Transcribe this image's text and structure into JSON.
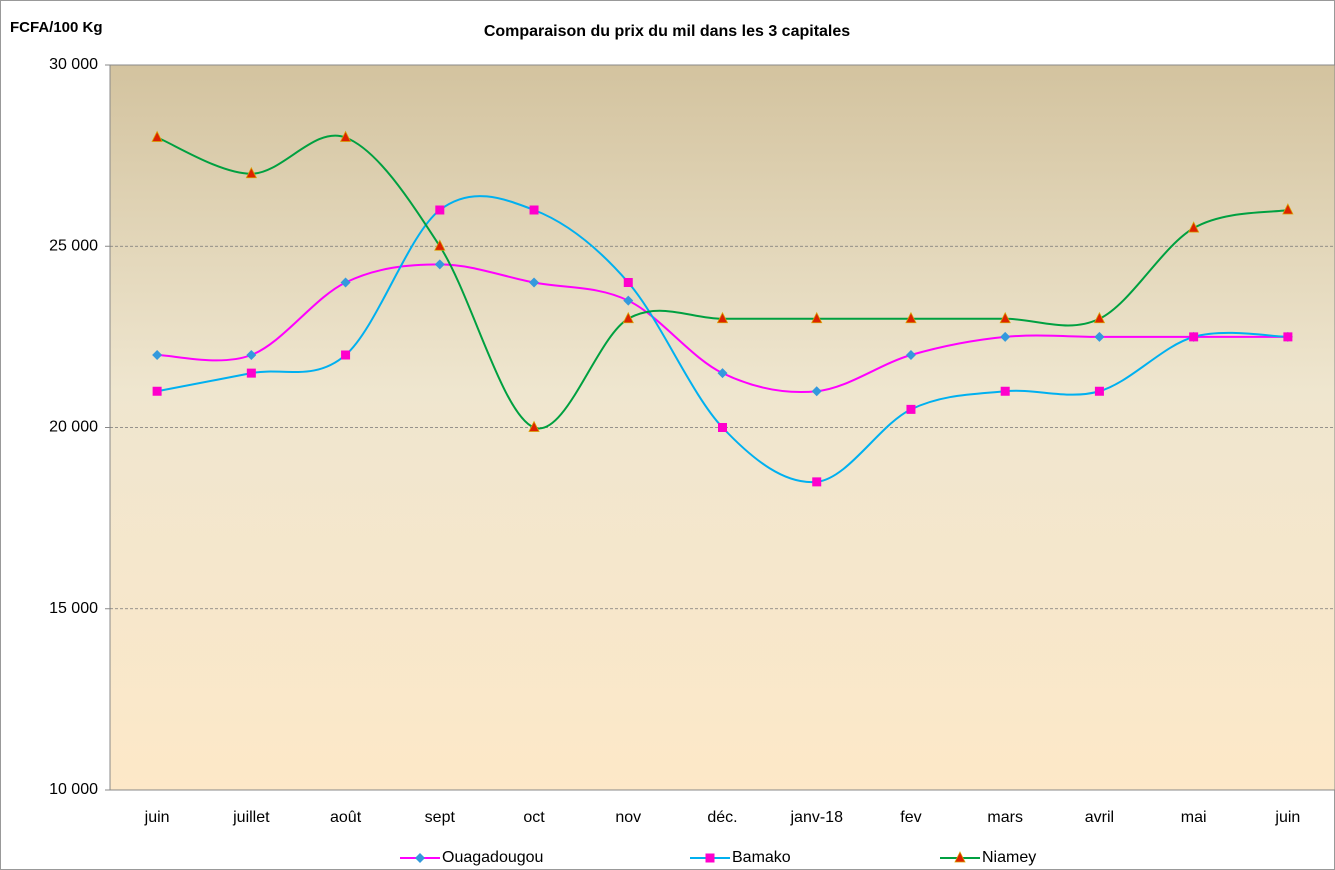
{
  "chart_data": {
    "type": "line",
    "title": "Comparaison du prix du mil dans les 3 capitales",
    "y_label": "FCFA/100 Kg",
    "categories": [
      "juin",
      "juillet",
      "août",
      "sept",
      "oct",
      "nov",
      "déc.",
      "janv-18",
      "fev",
      "mars",
      "avril",
      "mai",
      "juin"
    ],
    "series": [
      {
        "name": "Ouagadougou",
        "color": "#ff00ff",
        "marker": "diamond",
        "marker_color": "#3399dd",
        "values": [
          22000,
          22000,
          24000,
          24500,
          24000,
          23500,
          21500,
          21000,
          22000,
          22500,
          22500,
          22500,
          22500
        ]
      },
      {
        "name": "Bamako",
        "color": "#00b0f0",
        "marker": "square",
        "marker_color": "#ff00cc",
        "values": [
          21000,
          21500,
          22000,
          26000,
          26000,
          24000,
          20000,
          18500,
          20500,
          21000,
          21000,
          22500,
          22500
        ]
      },
      {
        "name": "Niamey",
        "color": "#00a040",
        "marker": "triangle",
        "marker_color": "#dd2200",
        "values": [
          28000,
          27000,
          28000,
          25000,
          20000,
          23000,
          23000,
          23000,
          23000,
          23000,
          23000,
          25500,
          26000
        ]
      }
    ],
    "smooth": true,
    "ylim": [
      10000,
      30000
    ],
    "yticks": [
      {
        "value": 10000,
        "label": "10 000"
      },
      {
        "value": 15000,
        "label": "15 000"
      },
      {
        "value": 20000,
        "label": "20 000"
      },
      {
        "value": 25000,
        "label": "25 000"
      },
      {
        "value": 30000,
        "label": "30 000"
      }
    ],
    "grid": true,
    "legend": "bottom"
  }
}
